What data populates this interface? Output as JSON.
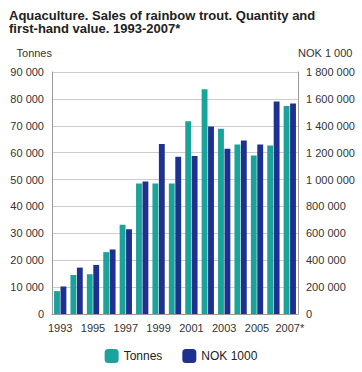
{
  "chart_data": {
    "type": "bar",
    "title": "Aquaculture. Sales of rainbow trout. Quantity and first-hand value. 1993-2007*",
    "ylabel": "Tonnes",
    "y2label": "NOK 1 000",
    "categories": [
      "1993",
      null,
      "1995",
      null,
      "1997",
      null,
      "1999",
      null,
      "2001",
      null,
      "2003",
      null,
      "2005",
      null,
      "2007*"
    ],
    "series": [
      {
        "name": "Tonnes",
        "color": "#1aa39b",
        "values": [
          8500,
          14500,
          14800,
          23000,
          33200,
          48500,
          48500,
          48500,
          71700,
          83600,
          68900,
          63000,
          58900,
          62700,
          77400
        ]
      },
      {
        "name": "NOK 1000",
        "color": "#1f3190",
        "axis": "y2",
        "values": [
          205000,
          345000,
          365000,
          480000,
          630000,
          985000,
          1265000,
          1170000,
          1175000,
          1395000,
          1230000,
          1290000,
          1260000,
          1580000,
          1565000
        ]
      }
    ],
    "ylim": [
      0,
      90000
    ],
    "yticks": [
      0,
      {
        "value": 10000,
        "label": "10 000"
      },
      {
        "value": 20000,
        "label": "20 000"
      },
      {
        "value": 30000,
        "label": "30 000"
      },
      {
        "value": 40000,
        "label": "40 000"
      },
      {
        "value": 50000,
        "label": "50 000"
      },
      {
        "value": 60000,
        "label": "60 000"
      },
      {
        "value": 70000,
        "label": "70 000"
      },
      {
        "value": 80000,
        "label": "80 000"
      },
      {
        "value": 90000,
        "label": "90 000"
      }
    ],
    "y2lim": [
      0,
      1800000
    ],
    "y2ticks": [
      0,
      {
        "value": 200000,
        "label": "200 000"
      },
      {
        "value": 400000,
        "label": "400 000"
      },
      {
        "value": 600000,
        "label": "600 000"
      },
      {
        "value": 800000,
        "label": "800 000"
      },
      {
        "value": 1000000,
        "label": "1 000 000"
      },
      {
        "value": 1200000,
        "label": "1 200 000"
      },
      {
        "value": 1400000,
        "label": "1 400 000"
      },
      {
        "value": 1600000,
        "label": "1 600 000"
      },
      {
        "value": 1800000,
        "label": "1 800 000"
      }
    ],
    "grid": true,
    "legend": "bottom"
  }
}
